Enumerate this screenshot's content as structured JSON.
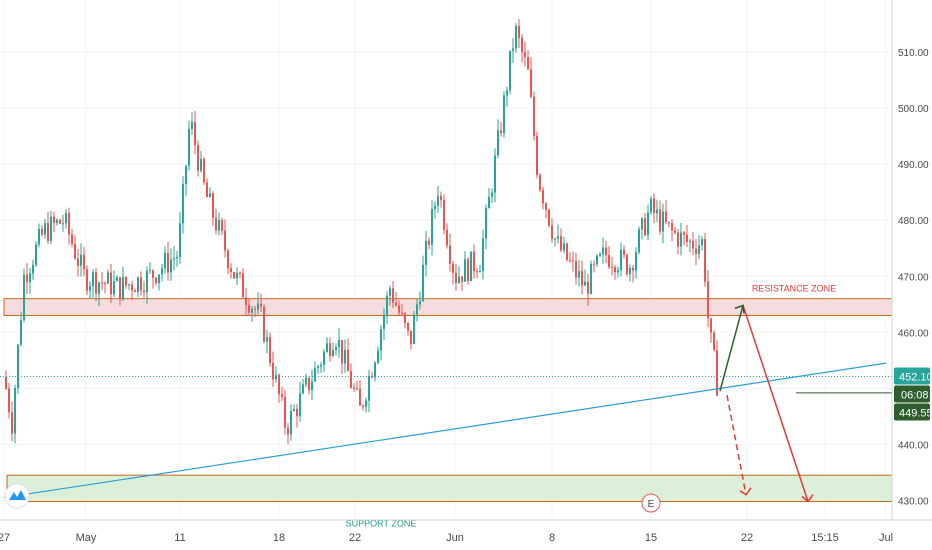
{
  "chart_data": {
    "type": "candlestick",
    "y_axis": {
      "ticks": [
        430,
        440,
        450,
        460,
        470,
        480,
        490,
        500,
        510
      ],
      "tick_labels": [
        "430.00",
        "440.00",
        "450.00",
        "460.00",
        "470.00",
        "480.00",
        "490.00",
        "500.00",
        "510.00"
      ],
      "range": [
        426.5,
        519.3
      ],
      "side": "right"
    },
    "x_axis": {
      "tick_labels": [
        "27",
        "May",
        "11",
        "18",
        "22",
        "Jun",
        "8",
        "15",
        "22",
        "15:15",
        "Jul"
      ]
    },
    "price_labels": {
      "current": "452.10",
      "timer": "06:08",
      "last": "449.55"
    },
    "levels": {
      "current_price": 452.1,
      "marker_price": 449.55
    },
    "zones": [
      {
        "name": "RESISTANCE ZONE",
        "low": 463.0,
        "high": 466.0,
        "fill": "#f7dcdf",
        "border": "#c46a1a",
        "label_color": "#e53935"
      },
      {
        "name": "SUPPORT ZONE",
        "low": 429.8,
        "high": 434.5,
        "fill": "#dcefd8",
        "border": "#c46a1a",
        "label_color": "#1c9a8c"
      }
    ],
    "trendline": {
      "from": [
        "27",
        430.5
      ],
      "to": [
        "Jul",
        454.5
      ],
      "color": "#2a9fd6"
    },
    "projections": [
      {
        "kind": "solid",
        "color": "#2e5e2e",
        "points": [
          [
            "22",
            449.5
          ],
          [
            "22",
            464.8
          ]
        ]
      },
      {
        "kind": "solid",
        "color": "#e53935",
        "points": [
          [
            "22",
            464.8
          ],
          [
            "15:15",
            429.8
          ]
        ]
      },
      {
        "kind": "dashed",
        "color": "#e53935",
        "points": [
          [
            "22",
            449.5
          ],
          [
            "22",
            431.0
          ]
        ]
      }
    ],
    "event_marker": "E",
    "colors": {
      "up": "#26a69a",
      "down": "#ef5350",
      "grid": "#f0f3f5",
      "axis_text": "#4a4a4a",
      "current_badge": "#26a69a",
      "last_badge": "#2e5e2e"
    }
  }
}
